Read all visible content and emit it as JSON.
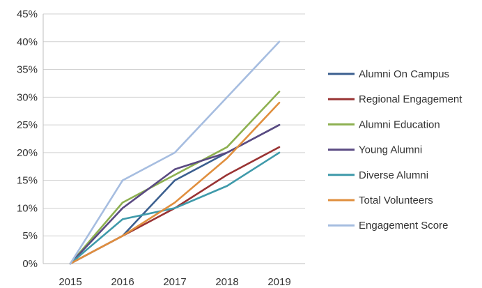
{
  "chart_data": {
    "type": "line",
    "categories": [
      "2015",
      "2016",
      "2017",
      "2018",
      "2019"
    ],
    "y_ticks": [
      "0%",
      "5%",
      "10%",
      "15%",
      "20%",
      "25%",
      "30%",
      "35%",
      "40%",
      "45%"
    ],
    "ylim": [
      0,
      45
    ],
    "y_unit": "%",
    "grid": true,
    "legend_position": "right",
    "series": [
      {
        "name": "Alumni On Campus",
        "color": "#3b5f8f",
        "values": [
          0,
          5,
          15,
          20,
          25
        ]
      },
      {
        "name": "Regional Engagement",
        "color": "#993333",
        "values": [
          0,
          5,
          10,
          16,
          21
        ]
      },
      {
        "name": "Alumni Education",
        "color": "#8db050",
        "values": [
          0,
          11,
          16,
          21,
          31
        ]
      },
      {
        "name": "Young Alumni",
        "color": "#5a4a82",
        "values": [
          0,
          10,
          17,
          20,
          25
        ]
      },
      {
        "name": "Diverse Alumni",
        "color": "#3f9aaa",
        "values": [
          0,
          8,
          10,
          14,
          20
        ]
      },
      {
        "name": "Total Volunteers",
        "color": "#e08f3e",
        "values": [
          0,
          5,
          11,
          19,
          29
        ]
      },
      {
        "name": "Engagement Score",
        "color": "#a6bde0",
        "values": [
          0,
          15,
          20,
          30,
          40
        ]
      }
    ]
  }
}
